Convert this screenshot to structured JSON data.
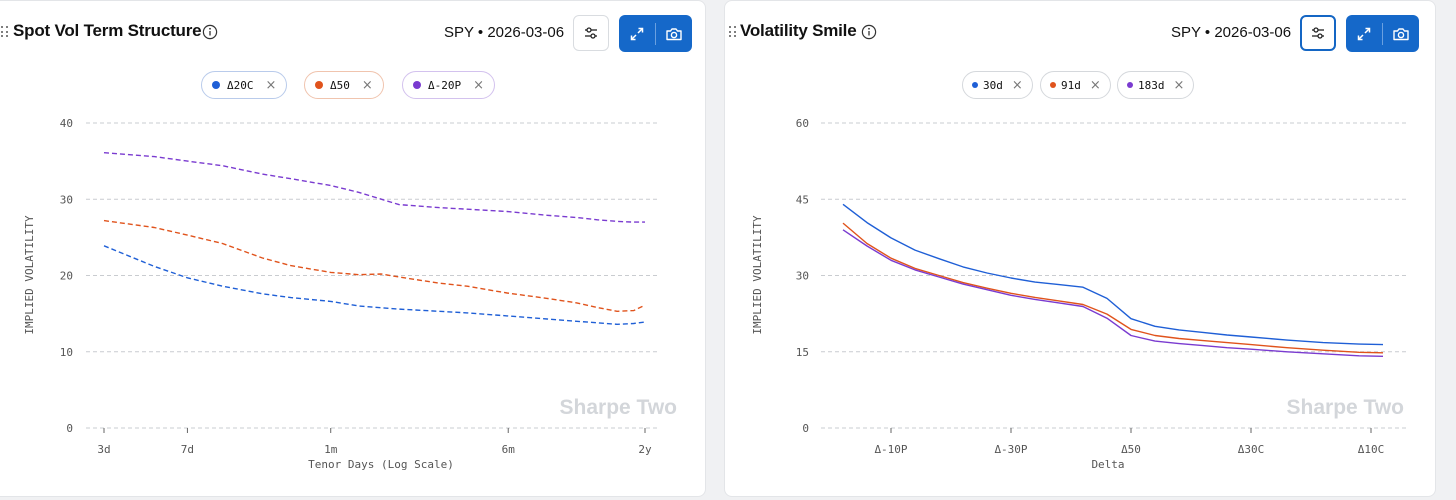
{
  "panels": {
    "left": {
      "title": "Spot Vol Term Structure",
      "meta": "SPY • 2026-03-06",
      "icons": {
        "drag": "drag-handle-icon",
        "info": "info-icon",
        "settings": "sliders-icon",
        "expand": "expand-icon",
        "snapshot": "camera-icon"
      },
      "chips": [
        {
          "label": "Δ20C",
          "color": "#1f5fd6",
          "border": "#b9cbeb"
        },
        {
          "label": "Δ50",
          "color": "#e0531c",
          "border": "#f0c4ae"
        },
        {
          "label": "Δ-20P",
          "color": "#7a3bd0",
          "border": "#d3c2ee"
        }
      ],
      "chip_close": "×",
      "watermark": "Sharpe Two"
    },
    "right": {
      "title": "Volatility Smile",
      "meta": "SPY • 2026-03-06",
      "icons": {
        "drag": "drag-handle-icon",
        "info": "info-icon",
        "settings": "sliders-icon",
        "expand": "expand-icon",
        "snapshot": "camera-icon"
      },
      "chips": [
        {
          "label": "30d",
          "color": "#1f5fd6",
          "border": "#d5d8dc"
        },
        {
          "label": "91d",
          "color": "#e0531c",
          "border": "#d5d8dc"
        },
        {
          "label": "183d",
          "color": "#7a3bd0",
          "border": "#d5d8dc"
        }
      ],
      "chip_close": "×",
      "watermark": "Sharpe Two"
    }
  },
  "chart_data": [
    {
      "type": "line",
      "line_style": "dashed",
      "xlabel": "Tenor Days (Log Scale)",
      "ylabel": "IMPLIED VOLATILITY",
      "x_scale": "log",
      "x_unit": "days",
      "ylim": [
        0,
        40
      ],
      "yticks": [
        0,
        10,
        20,
        30,
        40
      ],
      "xticks": [
        {
          "label": "3d",
          "x": 3
        },
        {
          "label": "7d",
          "x": 7
        },
        {
          "label": "1m",
          "x": 30
        },
        {
          "label": "6m",
          "x": 182
        },
        {
          "label": "2y",
          "x": 730
        }
      ],
      "grid": true,
      "series": [
        {
          "name": "Δ20C",
          "color": "#1f5fd6",
          "x": [
            3,
            5,
            7,
            10,
            15,
            20,
            30,
            40,
            60,
            90,
            120,
            180,
            270,
            365,
            450,
            550,
            650,
            730
          ],
          "y": [
            23.9,
            21.2,
            19.7,
            18.6,
            17.6,
            17.1,
            16.6,
            16.0,
            15.6,
            15.3,
            15.1,
            14.7,
            14.3,
            14.0,
            13.8,
            13.6,
            13.7,
            13.9
          ]
        },
        {
          "name": "Δ50",
          "color": "#e0531c",
          "x": [
            3,
            5,
            7,
            10,
            15,
            20,
            30,
            40,
            50,
            60,
            90,
            120,
            180,
            270,
            365,
            450,
            550,
            650,
            730
          ],
          "y": [
            27.2,
            26.3,
            25.3,
            24.2,
            22.3,
            21.3,
            20.4,
            20.1,
            20.2,
            19.8,
            19.0,
            18.6,
            17.7,
            17.0,
            16.4,
            15.8,
            15.3,
            15.4,
            16.1
          ]
        },
        {
          "name": "Δ-20P",
          "color": "#7a3bd0",
          "x": [
            3,
            5,
            7,
            10,
            15,
            20,
            30,
            40,
            60,
            90,
            120,
            180,
            270,
            365,
            450,
            550,
            650,
            730
          ],
          "y": [
            36.1,
            35.6,
            35.0,
            34.4,
            33.3,
            32.7,
            31.8,
            30.9,
            29.3,
            28.9,
            28.7,
            28.4,
            27.9,
            27.6,
            27.3,
            27.1,
            27.0,
            27.0
          ]
        }
      ]
    },
    {
      "type": "line",
      "line_style": "solid",
      "xlabel": "Delta",
      "ylabel": "IMPLIED VOLATILITY",
      "ylim": [
        0,
        60
      ],
      "yticks": [
        0,
        15,
        30,
        45,
        60
      ],
      "xticks": [
        {
          "label": "Δ-10P",
          "x": 1
        },
        {
          "label": "Δ-30P",
          "x": 2
        },
        {
          "label": "Δ50",
          "x": 3
        },
        {
          "label": "Δ30C",
          "x": 4
        },
        {
          "label": "Δ10C",
          "x": 5
        }
      ],
      "grid": true,
      "series": [
        {
          "name": "30d",
          "color": "#1f5fd6",
          "x": [
            0.6,
            0.8,
            1.0,
            1.2,
            1.4,
            1.6,
            1.8,
            2.0,
            2.2,
            2.4,
            2.6,
            2.8,
            3.0,
            3.2,
            3.4,
            3.6,
            3.8,
            4.0,
            4.3,
            4.6,
            4.9,
            5.1
          ],
          "y": [
            44.0,
            40.4,
            37.4,
            35.0,
            33.3,
            31.7,
            30.5,
            29.5,
            28.7,
            28.2,
            27.7,
            25.5,
            21.5,
            20.0,
            19.3,
            18.8,
            18.3,
            17.9,
            17.3,
            16.8,
            16.5,
            16.4
          ]
        },
        {
          "name": "91d",
          "color": "#e0531c",
          "x": [
            0.6,
            0.8,
            1.0,
            1.2,
            1.4,
            1.6,
            1.8,
            2.0,
            2.2,
            2.4,
            2.6,
            2.8,
            3.0,
            3.2,
            3.4,
            3.6,
            3.8,
            4.0,
            4.3,
            4.6,
            4.9,
            5.1
          ],
          "y": [
            40.3,
            36.3,
            33.4,
            31.4,
            30.0,
            28.6,
            27.5,
            26.5,
            25.7,
            25.0,
            24.3,
            22.4,
            19.4,
            18.2,
            17.6,
            17.2,
            16.8,
            16.4,
            15.8,
            15.3,
            14.9,
            14.8
          ]
        },
        {
          "name": "183d",
          "color": "#7a3bd0",
          "x": [
            0.6,
            0.8,
            1.0,
            1.2,
            1.4,
            1.6,
            1.8,
            2.0,
            2.2,
            2.4,
            2.6,
            2.8,
            3.0,
            3.2,
            3.4,
            3.6,
            3.8,
            4.0,
            4.3,
            4.6,
            4.9,
            5.1
          ],
          "y": [
            39.0,
            35.8,
            33.0,
            31.1,
            29.7,
            28.3,
            27.2,
            26.1,
            25.3,
            24.6,
            23.9,
            21.6,
            18.2,
            17.1,
            16.6,
            16.2,
            15.8,
            15.5,
            15.0,
            14.6,
            14.2,
            14.1
          ]
        }
      ]
    }
  ]
}
